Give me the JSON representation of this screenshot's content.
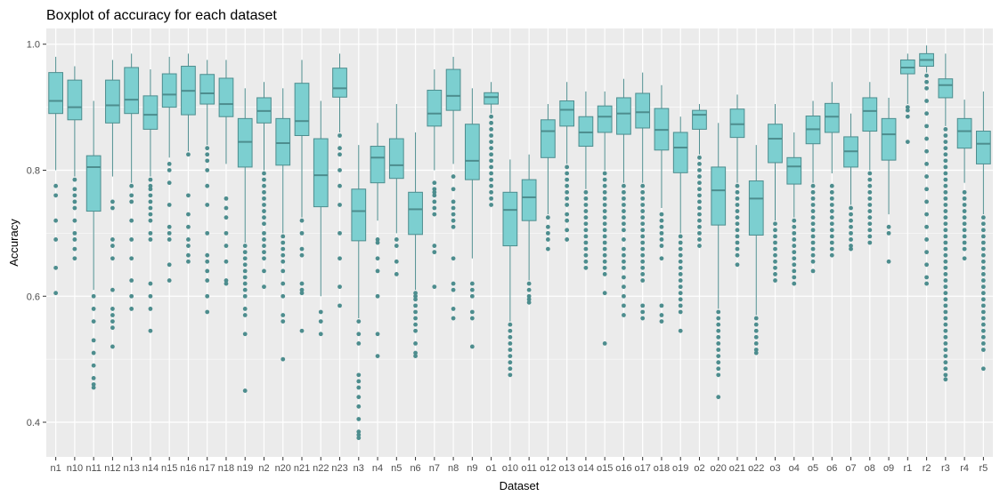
{
  "chart_data": {
    "type": "boxplot",
    "title": "Boxplot of accuracy for each dataset",
    "xlabel": "Dataset",
    "ylabel": "Accuracy",
    "ylim": [
      0.345,
      1.025
    ],
    "y_ticks": [
      0.4,
      0.6,
      0.8,
      1.0
    ],
    "y_tick_labels": [
      "0.4",
      "0.6",
      "0.8",
      "1.0"
    ],
    "grid": true,
    "colors": {
      "fill": "#7ccfd0",
      "line": "#4d8d8e",
      "outlier": "#4d8d8e",
      "panel": "#ebebeb",
      "grid": "#ffffff"
    },
    "boxes": [
      {
        "label": "n1",
        "whisker_low": 0.8,
        "q1": 0.89,
        "median": 0.91,
        "q3": 0.955,
        "whisker_high": 0.98,
        "outliers": [
          0.775,
          0.76,
          0.72,
          0.69,
          0.645,
          0.605
        ]
      },
      {
        "label": "n10",
        "whisker_low": 0.79,
        "q1": 0.88,
        "median": 0.9,
        "q3": 0.943,
        "whisker_high": 0.965,
        "outliers": [
          0.785,
          0.77,
          0.76,
          0.75,
          0.74,
          0.72,
          0.7,
          0.69,
          0.675,
          0.66
        ]
      },
      {
        "label": "n11",
        "whisker_low": 0.61,
        "q1": 0.735,
        "median": 0.805,
        "q3": 0.823,
        "whisker_high": 0.91,
        "outliers": [
          0.6,
          0.58,
          0.56,
          0.53,
          0.51,
          0.49,
          0.47,
          0.46,
          0.455
        ]
      },
      {
        "label": "n12",
        "whisker_low": 0.79,
        "q1": 0.875,
        "median": 0.903,
        "q3": 0.943,
        "whisker_high": 0.975,
        "outliers": [
          0.75,
          0.74,
          0.69,
          0.68,
          0.66,
          0.61,
          0.58,
          0.57,
          0.56,
          0.55,
          0.52
        ]
      },
      {
        "label": "n13",
        "whisker_low": 0.78,
        "q1": 0.89,
        "median": 0.912,
        "q3": 0.963,
        "whisker_high": 0.985,
        "outliers": [
          0.775,
          0.76,
          0.75,
          0.72,
          0.69,
          0.66,
          0.625,
          0.6,
          0.58
        ]
      },
      {
        "label": "n14",
        "whisker_low": 0.79,
        "q1": 0.865,
        "median": 0.888,
        "q3": 0.918,
        "whisker_high": 0.96,
        "outliers": [
          0.785,
          0.775,
          0.77,
          0.76,
          0.75,
          0.74,
          0.73,
          0.72,
          0.7,
          0.69,
          0.62,
          0.6,
          0.58,
          0.545
        ]
      },
      {
        "label": "n15",
        "whisker_low": 0.82,
        "q1": 0.9,
        "median": 0.92,
        "q3": 0.953,
        "whisker_high": 0.98,
        "outliers": [
          0.81,
          0.8,
          0.78,
          0.745,
          0.71,
          0.7,
          0.69,
          0.65,
          0.625
        ]
      },
      {
        "label": "n16",
        "whisker_low": 0.83,
        "q1": 0.888,
        "median": 0.926,
        "q3": 0.965,
        "whisker_high": 0.985,
        "outliers": [
          0.825,
          0.76,
          0.73,
          0.71,
          0.69,
          0.68,
          0.665,
          0.655
        ]
      },
      {
        "label": "n17",
        "whisker_low": 0.84,
        "q1": 0.905,
        "median": 0.922,
        "q3": 0.952,
        "whisker_high": 0.975,
        "outliers": [
          0.835,
          0.825,
          0.815,
          0.8,
          0.775,
          0.745,
          0.7,
          0.665,
          0.655,
          0.64,
          0.625,
          0.6,
          0.575
        ]
      },
      {
        "label": "n18",
        "whisker_low": 0.81,
        "q1": 0.885,
        "median": 0.905,
        "q3": 0.946,
        "whisker_high": 0.975,
        "outliers": [
          0.755,
          0.74,
          0.725,
          0.7,
          0.68,
          0.655,
          0.625,
          0.62
        ]
      },
      {
        "label": "n19",
        "whisker_low": 0.685,
        "q1": 0.805,
        "median": 0.845,
        "q3": 0.882,
        "whisker_high": 0.93,
        "outliers": [
          0.68,
          0.67,
          0.66,
          0.65,
          0.64,
          0.63,
          0.62,
          0.61,
          0.6,
          0.58,
          0.57,
          0.54,
          0.45
        ]
      },
      {
        "label": "n2",
        "whisker_low": 0.8,
        "q1": 0.875,
        "median": 0.894,
        "q3": 0.915,
        "whisker_high": 0.94,
        "outliers": [
          0.795,
          0.785,
          0.775,
          0.765,
          0.755,
          0.745,
          0.735,
          0.725,
          0.715,
          0.7,
          0.69,
          0.68,
          0.67,
          0.66,
          0.64,
          0.615
        ]
      },
      {
        "label": "n20",
        "whisker_low": 0.7,
        "q1": 0.808,
        "median": 0.843,
        "q3": 0.882,
        "whisker_high": 0.93,
        "outliers": [
          0.695,
          0.685,
          0.675,
          0.665,
          0.655,
          0.64,
          0.62,
          0.6,
          0.57,
          0.56,
          0.5
        ]
      },
      {
        "label": "n21",
        "whisker_low": 0.725,
        "q1": 0.855,
        "median": 0.878,
        "q3": 0.938,
        "whisker_high": 0.975,
        "outliers": [
          0.72,
          0.7,
          0.675,
          0.665,
          0.62,
          0.61,
          0.605,
          0.545
        ]
      },
      {
        "label": "n22",
        "whisker_low": 0.6,
        "q1": 0.742,
        "median": 0.792,
        "q3": 0.85,
        "whisker_high": 0.91,
        "outliers": [
          0.575,
          0.56,
          0.54
        ]
      },
      {
        "label": "n23",
        "whisker_low": 0.86,
        "q1": 0.916,
        "median": 0.93,
        "q3": 0.962,
        "whisker_high": 0.985,
        "outliers": [
          0.855,
          0.835,
          0.825,
          0.8,
          0.775,
          0.745,
          0.7,
          0.66,
          0.615,
          0.585
        ]
      },
      {
        "label": "n3",
        "whisker_low": 0.565,
        "q1": 0.688,
        "median": 0.735,
        "q3": 0.77,
        "whisker_high": 0.84,
        "outliers": [
          0.56,
          0.54,
          0.525,
          0.475,
          0.465,
          0.455,
          0.44,
          0.425,
          0.405,
          0.385,
          0.38,
          0.375
        ]
      },
      {
        "label": "n4",
        "whisker_low": 0.72,
        "q1": 0.78,
        "median": 0.82,
        "q3": 0.838,
        "whisker_high": 0.875,
        "outliers": [
          0.69,
          0.685,
          0.66,
          0.64,
          0.6,
          0.54,
          0.505
        ]
      },
      {
        "label": "n5",
        "whisker_low": 0.7,
        "q1": 0.787,
        "median": 0.808,
        "q3": 0.85,
        "whisker_high": 0.905,
        "outliers": [
          0.69,
          0.68,
          0.655,
          0.635
        ]
      },
      {
        "label": "n6",
        "whisker_low": 0.61,
        "q1": 0.698,
        "median": 0.738,
        "q3": 0.765,
        "whisker_high": 0.86,
        "outliers": [
          0.605,
          0.6,
          0.595,
          0.585,
          0.575,
          0.565,
          0.555,
          0.545,
          0.525,
          0.51,
          0.505
        ]
      },
      {
        "label": "n7",
        "whisker_low": 0.8,
        "q1": 0.87,
        "median": 0.89,
        "q3": 0.927,
        "whisker_high": 0.96,
        "outliers": [
          0.78,
          0.77,
          0.765,
          0.76,
          0.75,
          0.74,
          0.73,
          0.68,
          0.67,
          0.615
        ]
      },
      {
        "label": "n8",
        "whisker_low": 0.81,
        "q1": 0.895,
        "median": 0.918,
        "q3": 0.96,
        "whisker_high": 0.98,
        "outliers": [
          0.79,
          0.77,
          0.75,
          0.74,
          0.73,
          0.72,
          0.71,
          0.66,
          0.62,
          0.61,
          0.58,
          0.565
        ]
      },
      {
        "label": "n9",
        "whisker_low": 0.66,
        "q1": 0.785,
        "median": 0.815,
        "q3": 0.873,
        "whisker_high": 0.93,
        "outliers": [
          0.62,
          0.61,
          0.6,
          0.575,
          0.565,
          0.52
        ]
      },
      {
        "label": "o1",
        "whisker_low": 0.89,
        "q1": 0.905,
        "median": 0.916,
        "q3": 0.923,
        "whisker_high": 0.94,
        "outliers": [
          0.885,
          0.875,
          0.865,
          0.855,
          0.845,
          0.835,
          0.825,
          0.815,
          0.805,
          0.795,
          0.785,
          0.775,
          0.765,
          0.755,
          0.745
        ]
      },
      {
        "label": "o10",
        "whisker_low": 0.56,
        "q1": 0.68,
        "median": 0.737,
        "q3": 0.765,
        "whisker_high": 0.817,
        "outliers": [
          0.555,
          0.545,
          0.535,
          0.525,
          0.515,
          0.505,
          0.495,
          0.485,
          0.475
        ]
      },
      {
        "label": "o11",
        "whisker_low": 0.625,
        "q1": 0.72,
        "median": 0.757,
        "q3": 0.785,
        "whisker_high": 0.825,
        "outliers": [
          0.62,
          0.61,
          0.6,
          0.595,
          0.59
        ]
      },
      {
        "label": "o12",
        "whisker_low": 0.73,
        "q1": 0.82,
        "median": 0.862,
        "q3": 0.88,
        "whisker_high": 0.905,
        "outliers": [
          0.725,
          0.71,
          0.7,
          0.69,
          0.675
        ]
      },
      {
        "label": "o13",
        "whisker_low": 0.81,
        "q1": 0.87,
        "median": 0.896,
        "q3": 0.91,
        "whisker_high": 0.94,
        "outliers": [
          0.805,
          0.795,
          0.785,
          0.775,
          0.765,
          0.755,
          0.745,
          0.73,
          0.72,
          0.705,
          0.69
        ]
      },
      {
        "label": "o14",
        "whisker_low": 0.77,
        "q1": 0.838,
        "median": 0.86,
        "q3": 0.885,
        "whisker_high": 0.925,
        "outliers": [
          0.765,
          0.755,
          0.745,
          0.735,
          0.725,
          0.715,
          0.705,
          0.695,
          0.685,
          0.675,
          0.665,
          0.655,
          0.645
        ]
      },
      {
        "label": "o15",
        "whisker_low": 0.8,
        "q1": 0.86,
        "median": 0.885,
        "q3": 0.902,
        "whisker_high": 0.925,
        "outliers": [
          0.795,
          0.785,
          0.775,
          0.765,
          0.755,
          0.745,
          0.735,
          0.725,
          0.715,
          0.705,
          0.695,
          0.685,
          0.675,
          0.665,
          0.655,
          0.645,
          0.635,
          0.605,
          0.525
        ]
      },
      {
        "label": "o16",
        "whisker_low": 0.78,
        "q1": 0.857,
        "median": 0.89,
        "q3": 0.915,
        "whisker_high": 0.945,
        "outliers": [
          0.775,
          0.765,
          0.755,
          0.745,
          0.735,
          0.725,
          0.715,
          0.705,
          0.69,
          0.675,
          0.665,
          0.655,
          0.645,
          0.63,
          0.615,
          0.6,
          0.585,
          0.57
        ]
      },
      {
        "label": "o17",
        "whisker_low": 0.78,
        "q1": 0.867,
        "median": 0.892,
        "q3": 0.922,
        "whisker_high": 0.955,
        "outliers": [
          0.775,
          0.765,
          0.755,
          0.745,
          0.735,
          0.725,
          0.715,
          0.705,
          0.695,
          0.685,
          0.675,
          0.665,
          0.655,
          0.645,
          0.635,
          0.625,
          0.585,
          0.575,
          0.565
        ]
      },
      {
        "label": "o18",
        "whisker_low": 0.74,
        "q1": 0.832,
        "median": 0.864,
        "q3": 0.898,
        "whisker_high": 0.935,
        "outliers": [
          0.73,
          0.72,
          0.71,
          0.7,
          0.69,
          0.68,
          0.66,
          0.585,
          0.57,
          0.56
        ]
      },
      {
        "label": "o19",
        "whisker_low": 0.7,
        "q1": 0.796,
        "median": 0.836,
        "q3": 0.86,
        "whisker_high": 0.885,
        "outliers": [
          0.695,
          0.685,
          0.675,
          0.665,
          0.655,
          0.645,
          0.635,
          0.625,
          0.615,
          0.605,
          0.595,
          0.585,
          0.575,
          0.545
        ]
      },
      {
        "label": "o2",
        "whisker_low": 0.825,
        "q1": 0.865,
        "median": 0.888,
        "q3": 0.895,
        "whisker_high": 0.905,
        "outliers": [
          0.82,
          0.81,
          0.8,
          0.79,
          0.78,
          0.77,
          0.76,
          0.75,
          0.74,
          0.73,
          0.72,
          0.71,
          0.7,
          0.69,
          0.68
        ]
      },
      {
        "label": "o20",
        "whisker_low": 0.58,
        "q1": 0.713,
        "median": 0.768,
        "q3": 0.805,
        "whisker_high": 0.875,
        "outliers": [
          0.575,
          0.565,
          0.555,
          0.545,
          0.535,
          0.525,
          0.515,
          0.505,
          0.495,
          0.485,
          0.475,
          0.44
        ]
      },
      {
        "label": "o21",
        "whisker_low": 0.78,
        "q1": 0.852,
        "median": 0.873,
        "q3": 0.897,
        "whisker_high": 0.92,
        "outliers": [
          0.775,
          0.765,
          0.755,
          0.745,
          0.735,
          0.725,
          0.715,
          0.705,
          0.695,
          0.685,
          0.675,
          0.665,
          0.65
        ]
      },
      {
        "label": "o22",
        "whisker_low": 0.57,
        "q1": 0.697,
        "median": 0.755,
        "q3": 0.783,
        "whisker_high": 0.84,
        "outliers": [
          0.565,
          0.555,
          0.545,
          0.535,
          0.525,
          0.515,
          0.51
        ]
      },
      {
        "label": "o3",
        "whisker_low": 0.72,
        "q1": 0.812,
        "median": 0.85,
        "q3": 0.873,
        "whisker_high": 0.905,
        "outliers": [
          0.715,
          0.705,
          0.695,
          0.685,
          0.675,
          0.665,
          0.655,
          0.645,
          0.635,
          0.625
        ]
      },
      {
        "label": "o4",
        "whisker_low": 0.725,
        "q1": 0.778,
        "median": 0.806,
        "q3": 0.82,
        "whisker_high": 0.86,
        "outliers": [
          0.72,
          0.71,
          0.7,
          0.69,
          0.68,
          0.67,
          0.66,
          0.65,
          0.64,
          0.63,
          0.62
        ]
      },
      {
        "label": "o5",
        "whisker_low": 0.78,
        "q1": 0.842,
        "median": 0.865,
        "q3": 0.886,
        "whisker_high": 0.91,
        "outliers": [
          0.775,
          0.765,
          0.755,
          0.745,
          0.735,
          0.725,
          0.715,
          0.705,
          0.695,
          0.685,
          0.675,
          0.665,
          0.655,
          0.64
        ]
      },
      {
        "label": "o6",
        "whisker_low": 0.795,
        "q1": 0.86,
        "median": 0.885,
        "q3": 0.906,
        "whisker_high": 0.94,
        "outliers": [
          0.775,
          0.765,
          0.755,
          0.745,
          0.735,
          0.725,
          0.715,
          0.705,
          0.695,
          0.685,
          0.675,
          0.665
        ]
      },
      {
        "label": "o7",
        "whisker_low": 0.745,
        "q1": 0.805,
        "median": 0.83,
        "q3": 0.853,
        "whisker_high": 0.89,
        "outliers": [
          0.74,
          0.73,
          0.72,
          0.71,
          0.7,
          0.69,
          0.68,
          0.675
        ]
      },
      {
        "label": "o8",
        "whisker_low": 0.8,
        "q1": 0.862,
        "median": 0.894,
        "q3": 0.915,
        "whisker_high": 0.94,
        "outliers": [
          0.795,
          0.785,
          0.775,
          0.765,
          0.755,
          0.745,
          0.735,
          0.725,
          0.715,
          0.705,
          0.695,
          0.685
        ]
      },
      {
        "label": "o9",
        "whisker_low": 0.73,
        "q1": 0.816,
        "median": 0.857,
        "q3": 0.882,
        "whisker_high": 0.915,
        "outliers": [
          0.71,
          0.7,
          0.655
        ]
      },
      {
        "label": "r1",
        "whisker_low": 0.905,
        "q1": 0.953,
        "median": 0.963,
        "q3": 0.975,
        "whisker_high": 0.985,
        "outliers": [
          0.9,
          0.895,
          0.885,
          0.845
        ]
      },
      {
        "label": "r2",
        "whisker_low": 0.955,
        "q1": 0.965,
        "median": 0.975,
        "q3": 0.985,
        "whisker_high": 0.998,
        "outliers": [
          0.95,
          0.94,
          0.93,
          0.91,
          0.89,
          0.87,
          0.85,
          0.83,
          0.81,
          0.79,
          0.77,
          0.75,
          0.73,
          0.71,
          0.69,
          0.67,
          0.65,
          0.63,
          0.62
        ]
      },
      {
        "label": "r3",
        "whisker_low": 0.87,
        "q1": 0.915,
        "median": 0.935,
        "q3": 0.945,
        "whisker_high": 0.985,
        "outliers": [
          0.865,
          0.855,
          0.845,
          0.835,
          0.825,
          0.815,
          0.805,
          0.795,
          0.785,
          0.775,
          0.765,
          0.755,
          0.745,
          0.735,
          0.725,
          0.715,
          0.705,
          0.695,
          0.685,
          0.675,
          0.665,
          0.655,
          0.645,
          0.635,
          0.625,
          0.615,
          0.605,
          0.595,
          0.585,
          0.575,
          0.565,
          0.555,
          0.545,
          0.535,
          0.525,
          0.515,
          0.505,
          0.495,
          0.485,
          0.475,
          0.468
        ]
      },
      {
        "label": "r4",
        "whisker_low": 0.78,
        "q1": 0.835,
        "median": 0.862,
        "q3": 0.882,
        "whisker_high": 0.912,
        "outliers": [
          0.765,
          0.755,
          0.745,
          0.735,
          0.725,
          0.715,
          0.705,
          0.695,
          0.685,
          0.675,
          0.66
        ]
      },
      {
        "label": "r5",
        "whisker_low": 0.73,
        "q1": 0.81,
        "median": 0.842,
        "q3": 0.862,
        "whisker_high": 0.925,
        "outliers": [
          0.725,
          0.715,
          0.705,
          0.695,
          0.685,
          0.675,
          0.665,
          0.655,
          0.645,
          0.635,
          0.625,
          0.615,
          0.605,
          0.595,
          0.585,
          0.575,
          0.565,
          0.555,
          0.545,
          0.535,
          0.525,
          0.515,
          0.485
        ]
      }
    ]
  }
}
